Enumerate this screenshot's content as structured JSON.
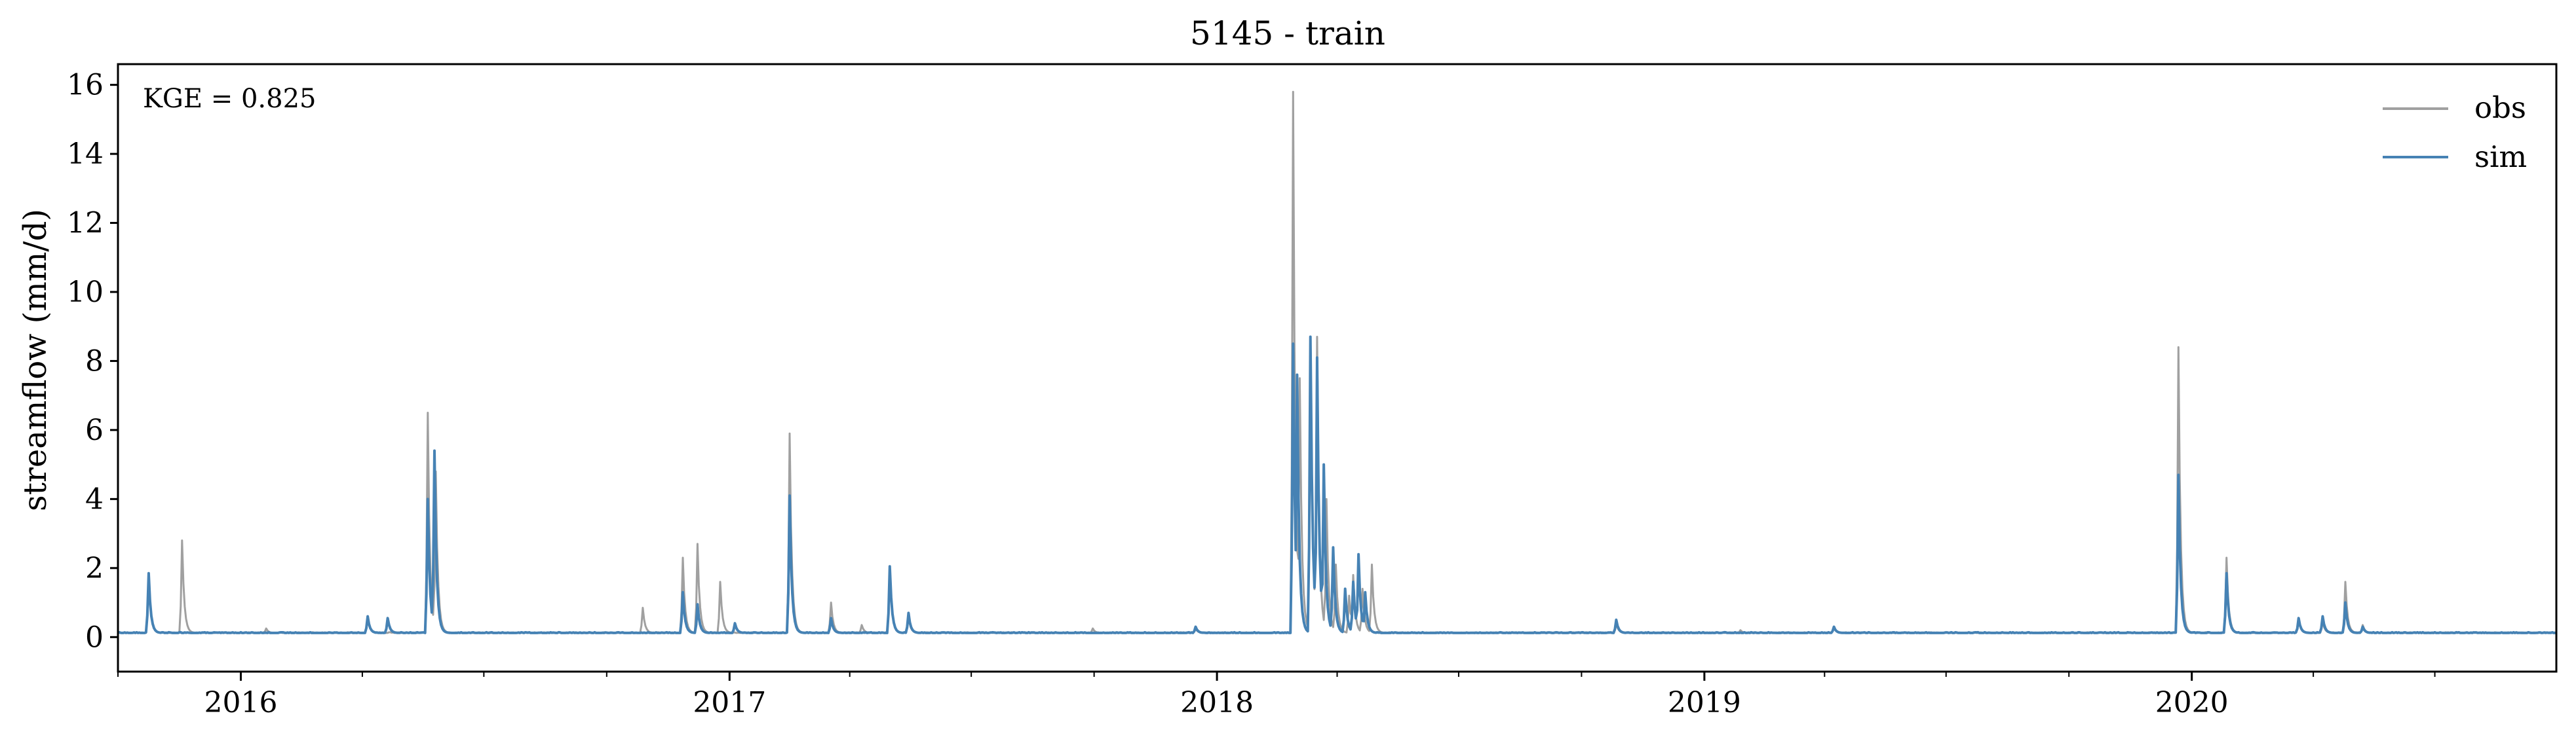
{
  "chart_data": {
    "type": "line",
    "title": "5145 - train",
    "xlabel": "",
    "ylabel": "streamflow (mm/d)",
    "annotation": "KGE = 0.825",
    "xlim": [
      "2015-10-01",
      "2020-09-30"
    ],
    "ylim": [
      -1.0,
      16.6
    ],
    "x_ticks": [
      "2016-01-01",
      "2017-01-01",
      "2018-01-01",
      "2019-01-01",
      "2020-01-01"
    ],
    "x_tick_labels": [
      "2016",
      "2017",
      "2018",
      "2019",
      "2020"
    ],
    "y_ticks": [
      0,
      2,
      4,
      6,
      8,
      10,
      12,
      14,
      16
    ],
    "y_tick_labels": [
      "0",
      "2",
      "4",
      "6",
      "8",
      "10",
      "12",
      "14",
      "16"
    ],
    "grid": false,
    "legend_position": "top-right",
    "baseline": 0.12,
    "series": [
      {
        "name": "obs",
        "color": "#a0a0a0",
        "peaks": [
          [
            "2015-10-24",
            1.8
          ],
          [
            "2015-11-18",
            2.8
          ],
          [
            "2016-01-20",
            0.25
          ],
          [
            "2016-04-05",
            0.55
          ],
          [
            "2016-05-20",
            6.5
          ],
          [
            "2016-05-26",
            4.8
          ],
          [
            "2016-10-28",
            0.85
          ],
          [
            "2016-11-27",
            2.3
          ],
          [
            "2016-12-08",
            2.7
          ],
          [
            "2016-12-25",
            1.6
          ],
          [
            "2017-02-15",
            5.9
          ],
          [
            "2017-03-18",
            1.0
          ],
          [
            "2017-04-10",
            0.35
          ],
          [
            "2017-05-01",
            2.0
          ],
          [
            "2017-05-15",
            0.6
          ],
          [
            "2017-09-30",
            0.25
          ],
          [
            "2017-12-16",
            0.25
          ],
          [
            "2018-02-27",
            15.8
          ],
          [
            "2018-03-04",
            7.5
          ],
          [
            "2018-03-12",
            8.4
          ],
          [
            "2018-03-17",
            8.7
          ],
          [
            "2018-03-24",
            4.0
          ],
          [
            "2018-03-31",
            2.1
          ],
          [
            "2018-04-10",
            1.2
          ],
          [
            "2018-04-13",
            1.8
          ],
          [
            "2018-04-20",
            1.4
          ],
          [
            "2018-04-27",
            2.1
          ],
          [
            "2018-10-27",
            0.4
          ],
          [
            "2019-01-28",
            0.2
          ],
          [
            "2019-04-08",
            0.3
          ],
          [
            "2019-12-22",
            8.4
          ],
          [
            "2020-01-27",
            2.3
          ],
          [
            "2020-03-21",
            0.5
          ],
          [
            "2020-04-08",
            0.45
          ],
          [
            "2020-04-25",
            1.6
          ],
          [
            "2020-05-08",
            0.35
          ]
        ]
      },
      {
        "name": "sim",
        "color": "#4682b4",
        "peaks": [
          [
            "2015-10-24",
            1.85
          ],
          [
            "2016-04-05",
            0.6
          ],
          [
            "2016-04-20",
            0.55
          ],
          [
            "2016-05-20",
            4.0
          ],
          [
            "2016-05-25",
            5.4
          ],
          [
            "2016-11-27",
            1.3
          ],
          [
            "2016-12-08",
            0.95
          ],
          [
            "2017-01-05",
            0.4
          ],
          [
            "2017-02-15",
            4.1
          ],
          [
            "2017-03-18",
            0.55
          ],
          [
            "2017-05-01",
            2.05
          ],
          [
            "2017-05-15",
            0.7
          ],
          [
            "2017-12-16",
            0.3
          ],
          [
            "2018-02-27",
            8.5
          ],
          [
            "2018-03-02",
            7.6
          ],
          [
            "2018-03-12",
            8.7
          ],
          [
            "2018-03-17",
            8.1
          ],
          [
            "2018-03-22",
            5.0
          ],
          [
            "2018-03-29",
            2.6
          ],
          [
            "2018-04-07",
            1.4
          ],
          [
            "2018-04-13",
            1.6
          ],
          [
            "2018-04-17",
            2.4
          ],
          [
            "2018-04-22",
            1.3
          ],
          [
            "2018-10-27",
            0.5
          ],
          [
            "2019-04-08",
            0.3
          ],
          [
            "2019-12-22",
            4.7
          ],
          [
            "2020-01-27",
            1.85
          ],
          [
            "2020-03-21",
            0.55
          ],
          [
            "2020-04-08",
            0.6
          ],
          [
            "2020-04-25",
            1.0
          ],
          [
            "2020-05-08",
            0.3
          ]
        ]
      }
    ]
  }
}
